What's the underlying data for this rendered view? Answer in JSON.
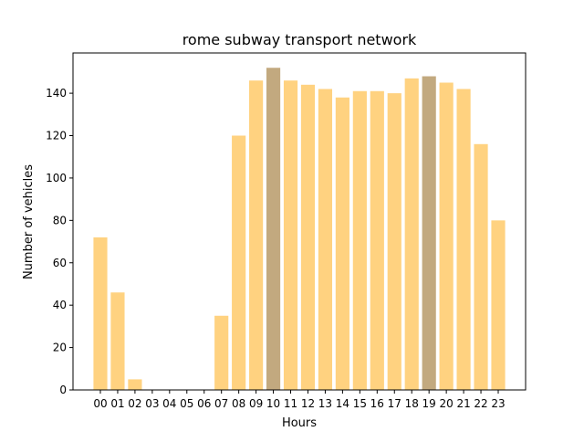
{
  "chart_data": {
    "type": "bar",
    "title": "rome subway transport network",
    "xlabel": "Hours",
    "ylabel": "Number of vehicles",
    "categories": [
      "00",
      "01",
      "02",
      "03",
      "04",
      "05",
      "06",
      "07",
      "08",
      "09",
      "10",
      "11",
      "12",
      "13",
      "14",
      "15",
      "16",
      "17",
      "18",
      "19",
      "20",
      "21",
      "22",
      "23"
    ],
    "values": [
      72,
      46,
      5,
      0,
      0,
      0,
      0,
      35,
      120,
      146,
      152,
      146,
      144,
      142,
      138,
      141,
      141,
      140,
      147,
      148,
      145,
      142,
      116,
      80
    ],
    "highlighted": [
      "10",
      "19"
    ],
    "ylim": [
      0,
      159
    ],
    "yticks": [
      0,
      20,
      40,
      60,
      80,
      100,
      120,
      140
    ],
    "grid": false,
    "colors": {
      "bar": "#ffd280",
      "highlight": "#c2a97f"
    }
  }
}
